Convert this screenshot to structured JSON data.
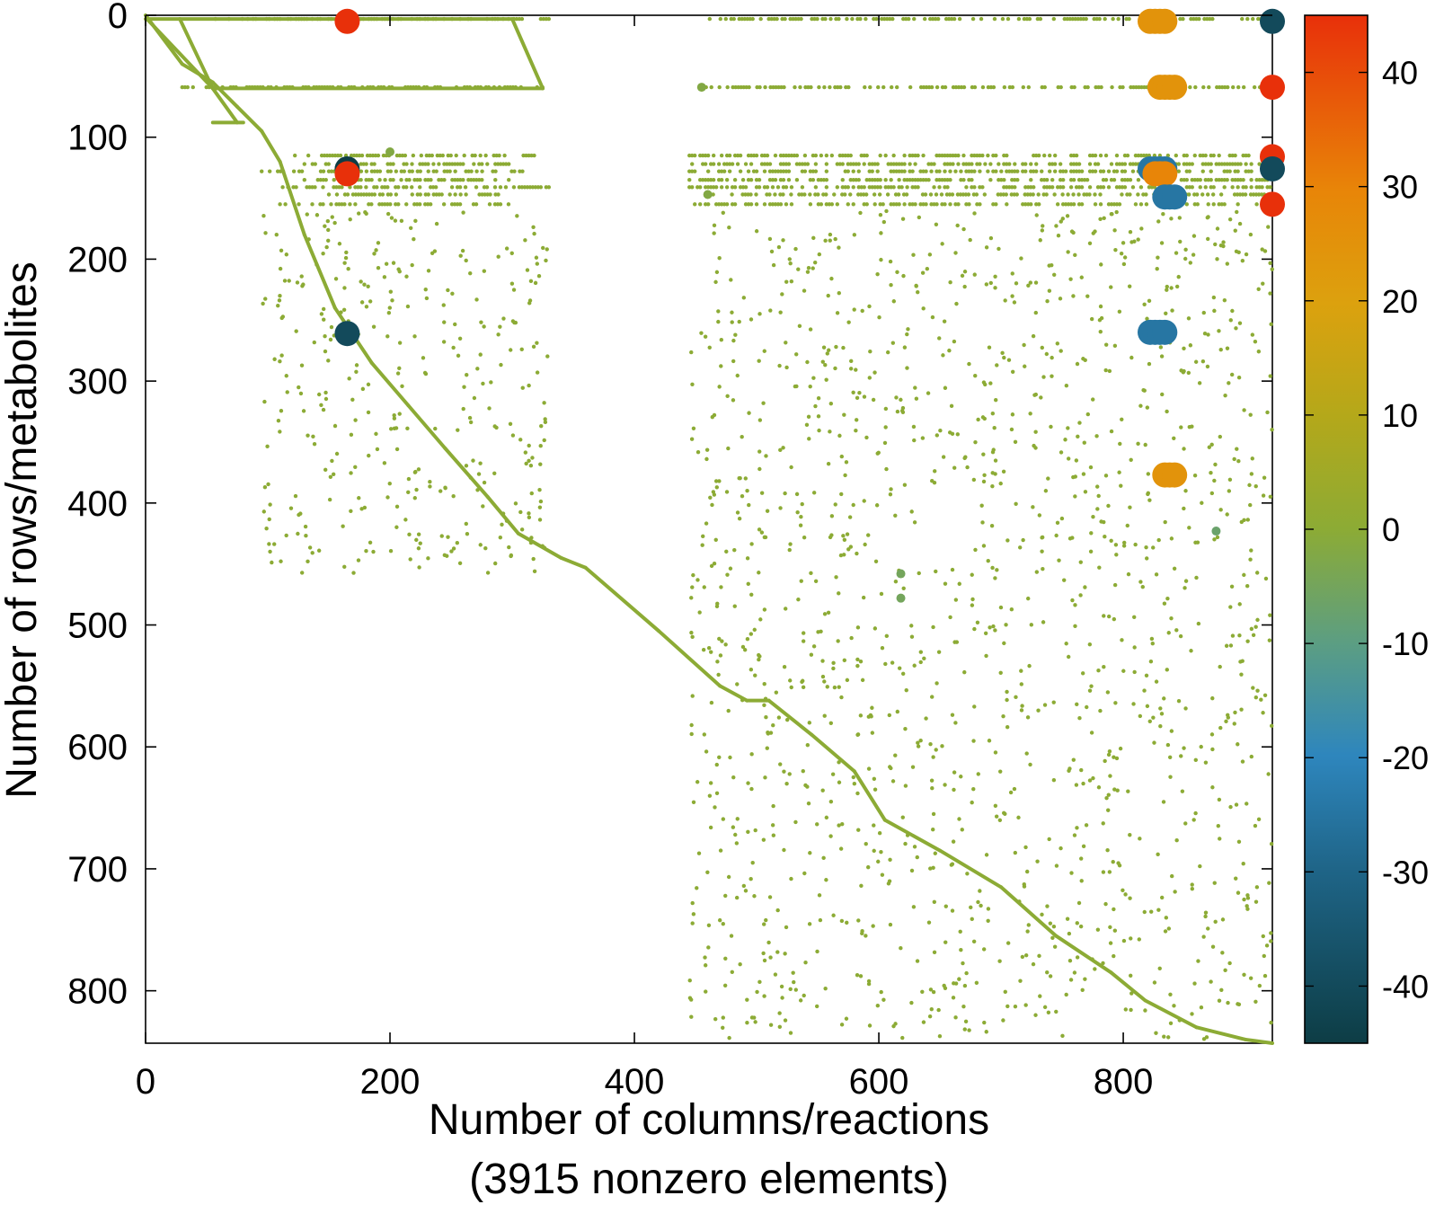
{
  "chart_data": {
    "type": "scatter",
    "title": "",
    "xlabel": "Number of columns/reactions",
    "xlabel_note": "(3915 nonzero elements)",
    "ylabel": "Number of rows/metabolites",
    "xlim": [
      0,
      922
    ],
    "ylim": [
      843,
      0
    ],
    "y_inverted": true,
    "x_ticks": [
      0,
      200,
      400,
      600,
      800
    ],
    "y_ticks": [
      0,
      100,
      200,
      300,
      400,
      500,
      600,
      700,
      800
    ],
    "grid": false,
    "legend": "none",
    "colorbar": {
      "range": [
        -45,
        45
      ],
      "ticks": [
        40,
        30,
        20,
        10,
        0,
        -10,
        -20,
        -30,
        -40
      ],
      "colors": {
        "neg45": "#0d3d45",
        "neg30": "#1f6588",
        "neg20": "#2e86bd",
        "neg10": "#5c9e82",
        "zero": "#8cab35",
        "pos10": "#b4a81a",
        "pos20": "#dca10e",
        "pos30": "#e88508",
        "pos45": "#e8300a"
      }
    },
    "nonzero_count": 3915,
    "diagonal_segments": [
      {
        "from": [
          0,
          0
        ],
        "to": [
          30,
          40
        ]
      },
      {
        "from": [
          30,
          40
        ],
        "to": [
          55,
          55
        ]
      },
      {
        "from": [
          55,
          55
        ],
        "to": [
          75,
          75
        ]
      },
      {
        "from": [
          75,
          75
        ],
        "to": [
          95,
          95
        ]
      },
      {
        "from": [
          95,
          95
        ],
        "to": [
          110,
          120
        ]
      },
      {
        "from": [
          110,
          120
        ],
        "to": [
          130,
          180
        ]
      },
      {
        "from": [
          130,
          180
        ],
        "to": [
          155,
          240
        ]
      },
      {
        "from": [
          155,
          240
        ],
        "to": [
          185,
          285
        ]
      },
      {
        "from": [
          185,
          285
        ],
        "to": [
          215,
          320
        ]
      },
      {
        "from": [
          215,
          320
        ],
        "to": [
          245,
          355
        ]
      },
      {
        "from": [
          245,
          355
        ],
        "to": [
          280,
          395
        ]
      },
      {
        "from": [
          280,
          395
        ],
        "to": [
          305,
          425
        ]
      },
      {
        "from": [
          305,
          425
        ],
        "to": [
          340,
          445
        ]
      },
      {
        "from": [
          340,
          445
        ],
        "to": [
          360,
          453
        ]
      },
      {
        "from": [
          360,
          453
        ],
        "to": [
          420,
          505
        ]
      },
      {
        "from": [
          420,
          505
        ],
        "to": [
          470,
          550
        ]
      },
      {
        "from": [
          470,
          550
        ],
        "to": [
          492,
          562
        ]
      },
      {
        "from": [
          492,
          562
        ],
        "to": [
          510,
          562
        ]
      },
      {
        "from": [
          510,
          562
        ],
        "to": [
          545,
          590
        ]
      },
      {
        "from": [
          545,
          590
        ],
        "to": [
          580,
          620
        ]
      },
      {
        "from": [
          580,
          620
        ],
        "to": [
          605,
          660
        ]
      },
      {
        "from": [
          605,
          660
        ],
        "to": [
          650,
          685
        ]
      },
      {
        "from": [
          650,
          685
        ],
        "to": [
          700,
          715
        ]
      },
      {
        "from": [
          700,
          715
        ],
        "to": [
          745,
          755
        ]
      },
      {
        "from": [
          745,
          755
        ],
        "to": [
          790,
          785
        ]
      },
      {
        "from": [
          790,
          785
        ],
        "to": [
          818,
          808
        ]
      },
      {
        "from": [
          818,
          808
        ],
        "to": [
          860,
          830
        ]
      },
      {
        "from": [
          860,
          830
        ],
        "to": [
          900,
          840
        ]
      },
      {
        "from": [
          900,
          840
        ],
        "to": [
          922,
          843
        ]
      }
    ],
    "polygon_segments": [
      {
        "from": [
          2,
          4
        ],
        "to": [
          55,
          60
        ]
      },
      {
        "from": [
          55,
          60
        ],
        "to": [
          75,
          88
        ]
      },
      {
        "from": [
          55,
          60
        ],
        "to": [
          325,
          60
        ]
      },
      {
        "from": [
          325,
          60
        ],
        "to": [
          300,
          3
        ]
      },
      {
        "from": [
          300,
          3
        ],
        "to": [
          28,
          3
        ]
      },
      {
        "from": [
          28,
          3
        ],
        "to": [
          55,
          60
        ]
      },
      {
        "from": [
          55,
          88
        ],
        "to": [
          80,
          88
        ]
      },
      {
        "from": [
          0,
          3
        ],
        "to": [
          28,
          3
        ]
      }
    ],
    "horizontal_bands": [
      {
        "y": 3,
        "x_start": 55,
        "x_end": 330
      },
      {
        "y": 3,
        "x_start": 455,
        "x_end": 922
      },
      {
        "y": 59,
        "x_start": 30,
        "x_end": 325
      },
      {
        "y": 59,
        "x_start": 452,
        "x_end": 922
      },
      {
        "y": 115,
        "x_start": 120,
        "x_end": 320
      },
      {
        "y": 115,
        "x_start": 445,
        "x_end": 922
      },
      {
        "y": 122,
        "x_start": 130,
        "x_end": 300
      },
      {
        "y": 122,
        "x_start": 445,
        "x_end": 922
      },
      {
        "y": 128,
        "x_start": 95,
        "x_end": 320
      },
      {
        "y": 128,
        "x_start": 445,
        "x_end": 922
      },
      {
        "y": 135,
        "x_start": 130,
        "x_end": 300
      },
      {
        "y": 135,
        "x_start": 445,
        "x_end": 922
      },
      {
        "y": 141,
        "x_start": 110,
        "x_end": 330
      },
      {
        "y": 141,
        "x_start": 445,
        "x_end": 922
      },
      {
        "y": 147,
        "x_start": 150,
        "x_end": 300
      },
      {
        "y": 147,
        "x_start": 460,
        "x_end": 922
      },
      {
        "y": 155,
        "x_start": 110,
        "x_end": 300
      },
      {
        "y": 155,
        "x_start": 445,
        "x_end": 922
      }
    ],
    "highlighted_points": [
      {
        "x": 165,
        "y": 5,
        "value": 45
      },
      {
        "x": 165,
        "y": 126,
        "value": -45
      },
      {
        "x": 165,
        "y": 130,
        "value": 45
      },
      {
        "x": 165,
        "y": 261,
        "value": -40
      },
      {
        "x": 822,
        "y": 5,
        "value": 25
      },
      {
        "x": 826,
        "y": 5,
        "value": 25
      },
      {
        "x": 830,
        "y": 5,
        "value": 25
      },
      {
        "x": 834,
        "y": 5,
        "value": 25
      },
      {
        "x": 922,
        "y": 5,
        "value": -40
      },
      {
        "x": 830,
        "y": 59,
        "value": 25
      },
      {
        "x": 834,
        "y": 59,
        "value": 25
      },
      {
        "x": 838,
        "y": 59,
        "value": 25
      },
      {
        "x": 842,
        "y": 59,
        "value": 25
      },
      {
        "x": 922,
        "y": 59,
        "value": 45
      },
      {
        "x": 922,
        "y": 116,
        "value": 45
      },
      {
        "x": 922,
        "y": 126,
        "value": -40
      },
      {
        "x": 822,
        "y": 126,
        "value": -25
      },
      {
        "x": 826,
        "y": 126,
        "value": -25
      },
      {
        "x": 830,
        "y": 126,
        "value": -25
      },
      {
        "x": 834,
        "y": 126,
        "value": -25
      },
      {
        "x": 826,
        "y": 130,
        "value": 30
      },
      {
        "x": 830,
        "y": 130,
        "value": 30
      },
      {
        "x": 834,
        "y": 130,
        "value": 30
      },
      {
        "x": 834,
        "y": 149,
        "value": -25
      },
      {
        "x": 838,
        "y": 149,
        "value": -25
      },
      {
        "x": 842,
        "y": 149,
        "value": -25
      },
      {
        "x": 922,
        "y": 155,
        "value": 45
      },
      {
        "x": 822,
        "y": 260,
        "value": -25
      },
      {
        "x": 826,
        "y": 260,
        "value": -25
      },
      {
        "x": 830,
        "y": 260,
        "value": -25
      },
      {
        "x": 834,
        "y": 260,
        "value": -25
      },
      {
        "x": 834,
        "y": 377,
        "value": 25
      },
      {
        "x": 838,
        "y": 377,
        "value": 25
      },
      {
        "x": 842,
        "y": 377,
        "value": 25
      },
      {
        "x": 876,
        "y": 423,
        "value": -7
      },
      {
        "x": 618,
        "y": 458,
        "value": -5
      },
      {
        "x": 618,
        "y": 478,
        "value": -5
      },
      {
        "x": 200,
        "y": 112,
        "value": -2
      },
      {
        "x": 455,
        "y": 59,
        "value": -2
      },
      {
        "x": 460,
        "y": 147,
        "value": -2
      }
    ],
    "scattered_clusters": [
      {
        "x_range": [
          445,
          922
        ],
        "y_range": [
          160,
          840
        ],
        "approx_count": 1400
      },
      {
        "x_range": [
          95,
          330
        ],
        "y_range": [
          160,
          460
        ],
        "approx_count": 350
      }
    ]
  }
}
